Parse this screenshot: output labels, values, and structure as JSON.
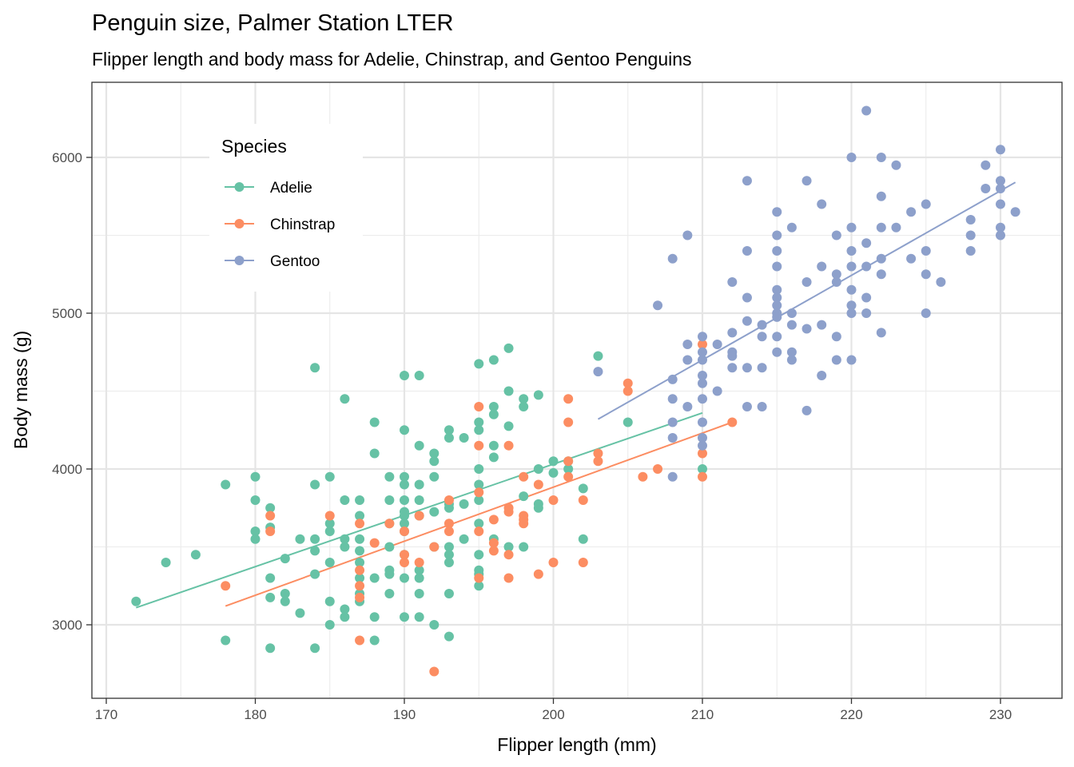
{
  "chart_data": {
    "type": "scatter",
    "title": "Penguin size, Palmer Station LTER",
    "subtitle": "Flipper length and body mass for Adelie, Chinstrap, and Gentoo Penguins",
    "xlabel": "Flipper length (mm)",
    "ylabel": "Body mass (g)",
    "xlim": [
      169,
      233
    ],
    "ylim": [
      2530,
      6420
    ],
    "x_ticks": [
      170,
      180,
      190,
      200,
      210,
      220,
      230
    ],
    "y_ticks": [
      3000,
      4000,
      5000,
      6000
    ],
    "x_tick_labels": [
      "170",
      "180",
      "190",
      "200",
      "210",
      "220",
      "230"
    ],
    "y_tick_labels": [
      "3000",
      "4000",
      "5000",
      "6000"
    ],
    "grid": true,
    "legend": {
      "title": "Species",
      "position": "top-left-inside"
    },
    "series": [
      {
        "name": "Adelie",
        "color": "#66c2a5",
        "fit_line": {
          "x": [
            172,
            210
          ],
          "y": [
            3110,
            4360
          ]
        },
        "points": [
          [
            172,
            3150
          ],
          [
            174,
            3400
          ],
          [
            176,
            3450
          ],
          [
            178,
            3900
          ],
          [
            178,
            2900
          ],
          [
            180,
            3950
          ],
          [
            180,
            3800
          ],
          [
            180,
            3600
          ],
          [
            180,
            3550
          ],
          [
            181,
            3750
          ],
          [
            181,
            3625
          ],
          [
            181,
            3300
          ],
          [
            181,
            3175
          ],
          [
            181,
            2850
          ],
          [
            182,
            3425
          ],
          [
            182,
            3200
          ],
          [
            182,
            3150
          ],
          [
            183,
            3550
          ],
          [
            183,
            3075
          ],
          [
            184,
            4650
          ],
          [
            184,
            3900
          ],
          [
            184,
            3550
          ],
          [
            184,
            3475
          ],
          [
            184,
            3325
          ],
          [
            184,
            2850
          ],
          [
            185,
            3950
          ],
          [
            185,
            3650
          ],
          [
            185,
            3600
          ],
          [
            185,
            3400
          ],
          [
            185,
            3150
          ],
          [
            185,
            3000
          ],
          [
            186,
            4450
          ],
          [
            186,
            3800
          ],
          [
            186,
            3550
          ],
          [
            186,
            3500
          ],
          [
            186,
            3100
          ],
          [
            186,
            3050
          ],
          [
            187,
            3800
          ],
          [
            187,
            3700
          ],
          [
            187,
            3550
          ],
          [
            187,
            3475
          ],
          [
            187,
            3400
          ],
          [
            187,
            3300
          ],
          [
            187,
            3200
          ],
          [
            187,
            3150
          ],
          [
            188,
            4300
          ],
          [
            188,
            4100
          ],
          [
            188,
            3300
          ],
          [
            188,
            3050
          ],
          [
            188,
            2900
          ],
          [
            189,
            3950
          ],
          [
            189,
            3800
          ],
          [
            189,
            3650
          ],
          [
            189,
            3500
          ],
          [
            189,
            3350
          ],
          [
            189,
            3325
          ],
          [
            189,
            3200
          ],
          [
            190,
            4600
          ],
          [
            190,
            4250
          ],
          [
            190,
            3950
          ],
          [
            190,
            3900
          ],
          [
            190,
            3800
          ],
          [
            190,
            3725
          ],
          [
            190,
            3700
          ],
          [
            190,
            3650
          ],
          [
            190,
            3600
          ],
          [
            190,
            3450
          ],
          [
            190,
            3300
          ],
          [
            190,
            3050
          ],
          [
            191,
            4600
          ],
          [
            191,
            4150
          ],
          [
            191,
            3900
          ],
          [
            191,
            3800
          ],
          [
            191,
            3700
          ],
          [
            191,
            3350
          ],
          [
            191,
            3300
          ],
          [
            191,
            3200
          ],
          [
            191,
            3050
          ],
          [
            192,
            4100
          ],
          [
            192,
            4050
          ],
          [
            192,
            3950
          ],
          [
            192,
            3725
          ],
          [
            192,
            3500
          ],
          [
            192,
            3000
          ],
          [
            193,
            4250
          ],
          [
            193,
            4200
          ],
          [
            193,
            3775
          ],
          [
            193,
            3750
          ],
          [
            193,
            3500
          ],
          [
            193,
            3450
          ],
          [
            193,
            3400
          ],
          [
            193,
            3200
          ],
          [
            193,
            2925
          ],
          [
            194,
            4200
          ],
          [
            194,
            3775
          ],
          [
            194,
            3550
          ],
          [
            195,
            4675
          ],
          [
            195,
            4300
          ],
          [
            195,
            4250
          ],
          [
            195,
            4000
          ],
          [
            195,
            3900
          ],
          [
            195,
            3800
          ],
          [
            195,
            3650
          ],
          [
            195,
            3450
          ],
          [
            195,
            3350
          ],
          [
            195,
            3325
          ],
          [
            195,
            3250
          ],
          [
            196,
            4700
          ],
          [
            196,
            4400
          ],
          [
            196,
            4350
          ],
          [
            196,
            4150
          ],
          [
            196,
            4075
          ],
          [
            196,
            3550
          ],
          [
            197,
            4775
          ],
          [
            197,
            4500
          ],
          [
            197,
            4275
          ],
          [
            197,
            3500
          ],
          [
            198,
            4450
          ],
          [
            198,
            4400
          ],
          [
            198,
            3825
          ],
          [
            198,
            3500
          ],
          [
            199,
            4475
          ],
          [
            199,
            4000
          ],
          [
            199,
            3775
          ],
          [
            199,
            3750
          ],
          [
            200,
            4050
          ],
          [
            200,
            3975
          ],
          [
            201,
            4050
          ],
          [
            201,
            4000
          ],
          [
            202,
            3875
          ],
          [
            202,
            3550
          ],
          [
            203,
            4725
          ],
          [
            205,
            4300
          ],
          [
            210,
            4000
          ]
        ]
      },
      {
        "name": "Chinstrap",
        "color": "#fc8d62",
        "fit_line": {
          "x": [
            178,
            212
          ],
          "y": [
            3120,
            4300
          ]
        },
        "points": [
          [
            178,
            3250
          ],
          [
            181,
            3700
          ],
          [
            181,
            3600
          ],
          [
            185,
            3700
          ],
          [
            187,
            3650
          ],
          [
            187,
            3350
          ],
          [
            187,
            3250
          ],
          [
            187,
            3175
          ],
          [
            187,
            2900
          ],
          [
            188,
            3525
          ],
          [
            189,
            3650
          ],
          [
            190,
            3600
          ],
          [
            190,
            3450
          ],
          [
            190,
            3400
          ],
          [
            191,
            3700
          ],
          [
            191,
            3400
          ],
          [
            192,
            3500
          ],
          [
            192,
            2700
          ],
          [
            193,
            3800
          ],
          [
            193,
            3650
          ],
          [
            193,
            3600
          ],
          [
            195,
            4400
          ],
          [
            195,
            4150
          ],
          [
            195,
            3850
          ],
          [
            195,
            3600
          ],
          [
            195,
            3300
          ],
          [
            196,
            3675
          ],
          [
            196,
            3525
          ],
          [
            196,
            3475
          ],
          [
            197,
            4150
          ],
          [
            197,
            3750
          ],
          [
            197,
            3725
          ],
          [
            197,
            3450
          ],
          [
            197,
            3300
          ],
          [
            198,
            3950
          ],
          [
            198,
            3700
          ],
          [
            198,
            3675
          ],
          [
            198,
            3650
          ],
          [
            199,
            3900
          ],
          [
            199,
            3325
          ],
          [
            200,
            3800
          ],
          [
            200,
            3400
          ],
          [
            201,
            4450
          ],
          [
            201,
            4300
          ],
          [
            201,
            4050
          ],
          [
            201,
            3950
          ],
          [
            202,
            3800
          ],
          [
            202,
            3400
          ],
          [
            203,
            4100
          ],
          [
            203,
            4050
          ],
          [
            205,
            4550
          ],
          [
            205,
            4500
          ],
          [
            206,
            3950
          ],
          [
            207,
            4000
          ],
          [
            210,
            4800
          ],
          [
            210,
            4100
          ],
          [
            210,
            3950
          ],
          [
            212,
            4300
          ]
        ]
      },
      {
        "name": "Gentoo",
        "color": "#8da0cb",
        "fit_line": {
          "x": [
            203,
            231
          ],
          "y": [
            4320,
            5840
          ]
        },
        "points": [
          [
            203,
            4625
          ],
          [
            207,
            5050
          ],
          [
            208,
            5350
          ],
          [
            208,
            4575
          ],
          [
            208,
            4450
          ],
          [
            208,
            4300
          ],
          [
            208,
            4200
          ],
          [
            208,
            3950
          ],
          [
            209,
            5500
          ],
          [
            209,
            4800
          ],
          [
            209,
            4700
          ],
          [
            209,
            4400
          ],
          [
            210,
            4850
          ],
          [
            210,
            4750
          ],
          [
            210,
            4700
          ],
          [
            210,
            4600
          ],
          [
            210,
            4550
          ],
          [
            210,
            4450
          ],
          [
            210,
            4300
          ],
          [
            210,
            4200
          ],
          [
            210,
            4150
          ],
          [
            211,
            4800
          ],
          [
            211,
            4500
          ],
          [
            212,
            5200
          ],
          [
            212,
            4875
          ],
          [
            212,
            4750
          ],
          [
            212,
            4725
          ],
          [
            212,
            4650
          ],
          [
            213,
            5850
          ],
          [
            213,
            5400
          ],
          [
            213,
            5100
          ],
          [
            213,
            4950
          ],
          [
            213,
            4650
          ],
          [
            213,
            4400
          ],
          [
            214,
            4925
          ],
          [
            214,
            4850
          ],
          [
            214,
            4650
          ],
          [
            214,
            4400
          ],
          [
            215,
            5650
          ],
          [
            215,
            5500
          ],
          [
            215,
            5400
          ],
          [
            215,
            5300
          ],
          [
            215,
            5150
          ],
          [
            215,
            5100
          ],
          [
            215,
            5050
          ],
          [
            215,
            5000
          ],
          [
            215,
            4975
          ],
          [
            215,
            4850
          ],
          [
            215,
            4750
          ],
          [
            216,
            5550
          ],
          [
            216,
            5000
          ],
          [
            216,
            4925
          ],
          [
            216,
            4750
          ],
          [
            216,
            4700
          ],
          [
            217,
            5850
          ],
          [
            217,
            5200
          ],
          [
            217,
            4900
          ],
          [
            217,
            4375
          ],
          [
            218,
            5700
          ],
          [
            218,
            5300
          ],
          [
            218,
            4925
          ],
          [
            218,
            4600
          ],
          [
            219,
            5500
          ],
          [
            219,
            5250
          ],
          [
            219,
            5200
          ],
          [
            219,
            4850
          ],
          [
            219,
            4700
          ],
          [
            220,
            6000
          ],
          [
            220,
            5550
          ],
          [
            220,
            5400
          ],
          [
            220,
            5300
          ],
          [
            220,
            5150
          ],
          [
            220,
            5050
          ],
          [
            220,
            5000
          ],
          [
            220,
            4700
          ],
          [
            221,
            6300
          ],
          [
            221,
            5450
          ],
          [
            221,
            5300
          ],
          [
            221,
            5100
          ],
          [
            221,
            5000
          ],
          [
            222,
            6000
          ],
          [
            222,
            5750
          ],
          [
            222,
            5550
          ],
          [
            222,
            5350
          ],
          [
            222,
            5250
          ],
          [
            222,
            4875
          ],
          [
            223,
            5950
          ],
          [
            223,
            5550
          ],
          [
            224,
            5650
          ],
          [
            224,
            5350
          ],
          [
            225,
            5700
          ],
          [
            225,
            5400
          ],
          [
            225,
            5250
          ],
          [
            225,
            5000
          ],
          [
            226,
            5200
          ],
          [
            228,
            5600
          ],
          [
            228,
            5500
          ],
          [
            228,
            5400
          ],
          [
            229,
            5950
          ],
          [
            229,
            5800
          ],
          [
            230,
            6050
          ],
          [
            230,
            5850
          ],
          [
            230,
            5800
          ],
          [
            230,
            5700
          ],
          [
            230,
            5550
          ],
          [
            230,
            5500
          ],
          [
            231,
            5650
          ]
        ]
      }
    ]
  }
}
